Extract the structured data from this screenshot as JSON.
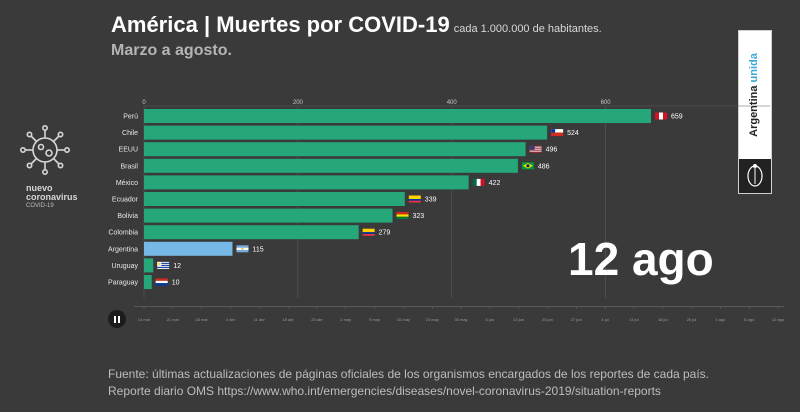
{
  "header": {
    "title": "América | Muertes por COVID-19",
    "title_sub": "cada 1.000.000 de habitantes.",
    "subtitle": "Marzo a agosto."
  },
  "logo": {
    "line1": "nuevo",
    "line2": "coronavirus",
    "line3": "COVID-19"
  },
  "badge": {
    "part1": "Argentina",
    "part2": "unida"
  },
  "current_date": "12 ago",
  "footer": {
    "line1": "Fuente: últimas actualizaciones de páginas oficiales de los organismos encargados de los reportes de cada país.",
    "line2": "Reporte diario OMS https://www.who.int/emergencies/diseases/novel-coronavirus-2019/situation-reports"
  },
  "timeline_labels": [
    "14 mar",
    "21 mar",
    "28 mar",
    "4 abr",
    "11 abr",
    "18 abr",
    "25 abr",
    "2 may",
    "9 may",
    "16 may",
    "23 may",
    "30 may",
    "6 jun",
    "13 jun",
    "20 jun",
    "27 jun",
    "4 jul",
    "11 jul",
    "18 jul",
    "25 jul",
    "1 ago",
    "8 ago",
    "12 ago"
  ],
  "colors": {
    "bar": "#25a779",
    "highlight": "#77b9e6",
    "grid": "#5c5c5c"
  },
  "chart_data": {
    "type": "bar",
    "orientation": "horizontal",
    "title": "América | Muertes por COVID-19 cada 1.000.000 de habitantes.",
    "xlim": [
      0,
      659
    ],
    "xticks": [
      0,
      200,
      400,
      600
    ],
    "categories": [
      "Perú",
      "Chile",
      "EEUU",
      "Brasil",
      "México",
      "Ecuador",
      "Bolivia",
      "Colombia",
      "Argentina",
      "Uruguay",
      "Paraguay"
    ],
    "values": [
      659,
      524,
      496,
      486,
      422,
      339,
      323,
      279,
      115,
      12,
      10
    ],
    "highlight": "Argentina"
  }
}
